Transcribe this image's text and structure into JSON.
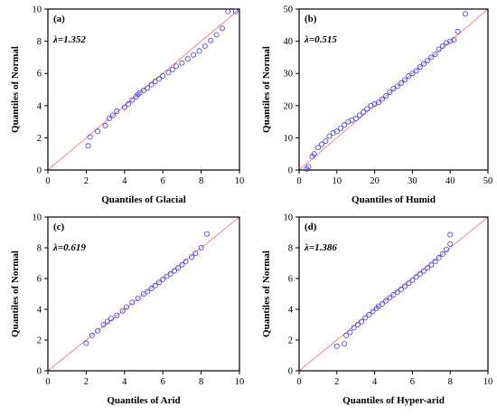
{
  "chart_data": [
    {
      "type": "scatter",
      "panel": "(a)",
      "annotation": "λ=1.352",
      "xlabel": "Quantiles of Glacial",
      "ylabel": "Quantiles of Normal",
      "xlim": [
        0,
        10
      ],
      "ylim": [
        0,
        10
      ],
      "xticks": [
        0,
        2,
        4,
        6,
        8,
        10
      ],
      "yticks": [
        0,
        2,
        4,
        6,
        8,
        10
      ],
      "reference_line": [
        [
          0,
          0
        ],
        [
          10,
          10
        ]
      ],
      "colors": {
        "points": "#3a3aff",
        "reference_line": "#f08080"
      },
      "points": [
        [
          2.1,
          1.5
        ],
        [
          2.2,
          2.05
        ],
        [
          2.6,
          2.4
        ],
        [
          3.0,
          2.75
        ],
        [
          3.2,
          3.2
        ],
        [
          3.4,
          3.4
        ],
        [
          3.6,
          3.65
        ],
        [
          4.0,
          3.9
        ],
        [
          4.2,
          4.1
        ],
        [
          4.4,
          4.35
        ],
        [
          4.6,
          4.55
        ],
        [
          4.7,
          4.7
        ],
        [
          4.8,
          4.8
        ],
        [
          5.0,
          4.95
        ],
        [
          5.2,
          5.1
        ],
        [
          5.4,
          5.3
        ],
        [
          5.6,
          5.5
        ],
        [
          5.8,
          5.65
        ],
        [
          6.0,
          5.85
        ],
        [
          6.3,
          6.05
        ],
        [
          6.5,
          6.25
        ],
        [
          6.7,
          6.45
        ],
        [
          7.0,
          6.65
        ],
        [
          7.3,
          6.9
        ],
        [
          7.6,
          7.15
        ],
        [
          7.9,
          7.4
        ],
        [
          8.2,
          7.7
        ],
        [
          8.5,
          8.05
        ],
        [
          8.8,
          8.4
        ],
        [
          9.1,
          8.8
        ],
        [
          9.4,
          9.85
        ],
        [
          9.8,
          9.85
        ]
      ]
    },
    {
      "type": "scatter",
      "panel": "(b)",
      "annotation": "λ=0.515",
      "xlabel": "Quantiles of Humid",
      "ylabel": "Quantiles of Normal",
      "xlim": [
        0,
        50
      ],
      "ylim": [
        0,
        50
      ],
      "xticks": [
        0,
        10,
        20,
        30,
        40,
        50
      ],
      "yticks": [
        0,
        10,
        20,
        30,
        40,
        50
      ],
      "reference_line": [
        [
          0,
          0
        ],
        [
          50,
          50
        ]
      ],
      "colors": {
        "points": "#3a3aff",
        "reference_line": "#f08080"
      },
      "points": [
        [
          2,
          0.3
        ],
        [
          2.5,
          1
        ],
        [
          3.5,
          4.2
        ],
        [
          4,
          5
        ],
        [
          5,
          7
        ],
        [
          6,
          8
        ],
        [
          7,
          9
        ],
        [
          8,
          10.5
        ],
        [
          9,
          11.5
        ],
        [
          10,
          12
        ],
        [
          11,
          13
        ],
        [
          12,
          14
        ],
        [
          13,
          15
        ],
        [
          14,
          15.5
        ],
        [
          15,
          16
        ],
        [
          16,
          17
        ],
        [
          17,
          18
        ],
        [
          18,
          19
        ],
        [
          19,
          20
        ],
        [
          20,
          20.5
        ],
        [
          21,
          21
        ],
        [
          22,
          22
        ],
        [
          23,
          23
        ],
        [
          24,
          24.2
        ],
        [
          25,
          25.3
        ],
        [
          26,
          26
        ],
        [
          27,
          27
        ],
        [
          28,
          28
        ],
        [
          29,
          29.2
        ],
        [
          30,
          30
        ],
        [
          31,
          30.8
        ],
        [
          32,
          32
        ],
        [
          33,
          33
        ],
        [
          34,
          34
        ],
        [
          35,
          35
        ],
        [
          36,
          36
        ],
        [
          37,
          37.5
        ],
        [
          38,
          38.5
        ],
        [
          39,
          39.5
        ],
        [
          40,
          40
        ],
        [
          41,
          40.5
        ],
        [
          42,
          43
        ],
        [
          44,
          48.5
        ]
      ]
    },
    {
      "type": "scatter",
      "panel": "(c)",
      "annotation": "λ=0.619",
      "xlabel": "Quantiles of Arid",
      "ylabel": "Quantiles of Normal",
      "xlim": [
        0,
        10
      ],
      "ylim": [
        0,
        10
      ],
      "xticks": [
        0,
        2,
        4,
        6,
        8,
        10
      ],
      "yticks": [
        0,
        2,
        4,
        6,
        8,
        10
      ],
      "reference_line": [
        [
          0,
          0
        ],
        [
          10,
          10
        ]
      ],
      "colors": {
        "points": "#3a3aff",
        "reference_line": "#f08080"
      },
      "points": [
        [
          2,
          1.8
        ],
        [
          2.3,
          2.3
        ],
        [
          2.6,
          2.6
        ],
        [
          2.9,
          3.0
        ],
        [
          3.1,
          3.2
        ],
        [
          3.3,
          3.4
        ],
        [
          3.6,
          3.6
        ],
        [
          3.9,
          3.9
        ],
        [
          4.1,
          4.15
        ],
        [
          4.4,
          4.45
        ],
        [
          4.7,
          4.7
        ],
        [
          5.0,
          5.0
        ],
        [
          5.2,
          5.15
        ],
        [
          5.4,
          5.35
        ],
        [
          5.6,
          5.55
        ],
        [
          5.8,
          5.75
        ],
        [
          6.0,
          5.95
        ],
        [
          6.2,
          6.15
        ],
        [
          6.4,
          6.3
        ],
        [
          6.6,
          6.5
        ],
        [
          6.8,
          6.7
        ],
        [
          7.0,
          6.9
        ],
        [
          7.2,
          7.1
        ],
        [
          7.5,
          7.4
        ],
        [
          7.7,
          7.65
        ],
        [
          8.0,
          8.0
        ],
        [
          8.3,
          8.9
        ]
      ]
    },
    {
      "type": "scatter",
      "panel": "(d)",
      "annotation": "λ=1.386",
      "xlabel": "Quantiles of Hyper-arid",
      "ylabel": "Quantiles of Normal",
      "xlim": [
        0,
        10
      ],
      "ylim": [
        0,
        10
      ],
      "xticks": [
        0,
        2,
        4,
        6,
        8,
        10
      ],
      "yticks": [
        0,
        2,
        4,
        6,
        8,
        10
      ],
      "reference_line": [
        [
          0,
          0
        ],
        [
          10,
          10
        ]
      ],
      "colors": {
        "points": "#3a3aff",
        "reference_line": "#f08080"
      },
      "points": [
        [
          2.0,
          1.6
        ],
        [
          2.4,
          1.75
        ],
        [
          2.5,
          2.3
        ],
        [
          2.7,
          2.5
        ],
        [
          2.9,
          2.8
        ],
        [
          3.1,
          3.0
        ],
        [
          3.3,
          3.2
        ],
        [
          3.5,
          3.45
        ],
        [
          3.7,
          3.65
        ],
        [
          3.9,
          3.85
        ],
        [
          4.1,
          4.05
        ],
        [
          4.2,
          4.2
        ],
        [
          4.4,
          4.35
        ],
        [
          4.6,
          4.55
        ],
        [
          4.8,
          4.75
        ],
        [
          5.0,
          4.95
        ],
        [
          5.2,
          5.1
        ],
        [
          5.4,
          5.3
        ],
        [
          5.6,
          5.5
        ],
        [
          5.8,
          5.7
        ],
        [
          6.0,
          5.9
        ],
        [
          6.2,
          6.1
        ],
        [
          6.4,
          6.3
        ],
        [
          6.6,
          6.5
        ],
        [
          6.8,
          6.7
        ],
        [
          7.0,
          6.9
        ],
        [
          7.2,
          7.1
        ],
        [
          7.4,
          7.35
        ],
        [
          7.6,
          7.6
        ],
        [
          7.8,
          7.9
        ],
        [
          8.0,
          8.25
        ],
        [
          8.0,
          8.85
        ]
      ]
    }
  ]
}
